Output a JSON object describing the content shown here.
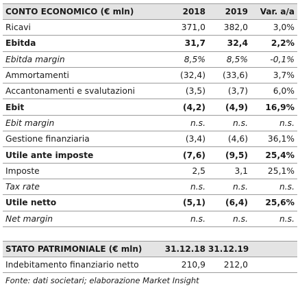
{
  "income": {
    "headers": [
      "CONTO ECONOMICO (€ mln)",
      "2018",
      "2019",
      "Var. a/a"
    ],
    "rows": [
      {
        "label": "Ricavi",
        "v2018": "371,0",
        "v2019": "382,0",
        "var": "3,0%",
        "style": "normal"
      },
      {
        "label": "Ebitda",
        "v2018": "31,7",
        "v2019": "32,4",
        "var": "2,2%",
        "style": "bold"
      },
      {
        "label": "Ebitda margin",
        "v2018": "8,5%",
        "v2019": "8,5%",
        "var": "-0,1%",
        "style": "italic"
      },
      {
        "label": "Ammortamenti",
        "v2018": "(32,4)",
        "v2019": "(33,6)",
        "var": "3,7%",
        "style": "normal"
      },
      {
        "label": "Accantonamenti e svalutazioni",
        "v2018": "(3,5)",
        "v2019": "(3,7)",
        "var": "6,0%",
        "style": "normal"
      },
      {
        "label": "Ebit",
        "v2018": "(4,2)",
        "v2019": "(4,9)",
        "var": "16,9%",
        "style": "bold"
      },
      {
        "label": "Ebit margin",
        "v2018": "n.s.",
        "v2019": "n.s.",
        "var": "n.s.",
        "style": "italic"
      },
      {
        "label": "Gestione finanziaria",
        "v2018": "(3,4)",
        "v2019": "(4,6)",
        "var": "36,1%",
        "style": "normal"
      },
      {
        "label": "Utile ante imposte",
        "v2018": "(7,6)",
        "v2019": "(9,5)",
        "var": "25,4%",
        "style": "bold"
      },
      {
        "label": "Imposte",
        "v2018": "2,5",
        "v2019": "3,1",
        "var": "25,1%",
        "style": "normal"
      },
      {
        "label": "Tax rate",
        "v2018": "n.s.",
        "v2019": "n.s.",
        "var": "n.s.",
        "style": "italic"
      },
      {
        "label": "Utile netto",
        "v2018": "(5,1)",
        "v2019": "(6,4)",
        "var": "25,6%",
        "style": "bold"
      },
      {
        "label": "Net margin",
        "v2018": "n.s.",
        "v2019": "n.s.",
        "var": "n.s.",
        "style": "italic"
      }
    ]
  },
  "balance": {
    "headers": [
      "STATO PATRIMONIALE  (€ mln)",
      "31.12.18",
      "31.12.19"
    ],
    "rows": [
      {
        "label": "Indebitamento finanziario netto",
        "d1": "210,9",
        "d2": "212,0"
      }
    ]
  },
  "source": "Fonte: dati societari; elaborazione Market Insight"
}
